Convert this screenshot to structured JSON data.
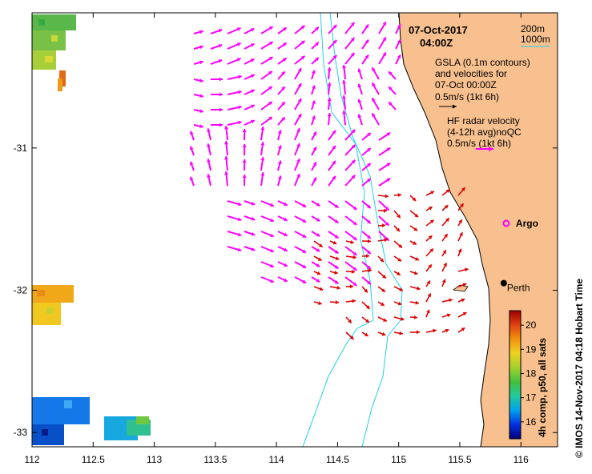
{
  "chart_data": {
    "type": "map",
    "title_date": "07-Oct-2017",
    "title_time": "04:00Z",
    "x_ticks": [
      112,
      112.5,
      113,
      113.5,
      114,
      114.5,
      115,
      115.5,
      116
    ],
    "y_ticks": [
      -31,
      -32,
      -33
    ],
    "xlim": [
      112,
      116.3
    ],
    "ylim": [
      -33.1,
      -30.05
    ],
    "depth_legend": [
      "200m",
      "1000m"
    ],
    "gsla_legend": [
      "GSLA (0.1m contours)",
      "and velocities for",
      "07-Oct 00:00Z",
      "0.5m/s (1kt 6h)"
    ],
    "hf_legend": [
      "HF radar velocity",
      "(4-12h avg)noQC",
      "0.5m/s (1kt 6h)"
    ],
    "markers": [
      {
        "label": "Argo",
        "lon": 115.88,
        "lat": -31.53
      },
      {
        "label": "Perth",
        "lon": 115.86,
        "lat": -31.95
      }
    ],
    "colorbar": {
      "label": "4h comp, p50, all sats",
      "ticks": [
        16,
        17,
        18,
        19,
        20
      ],
      "range": [
        15.3,
        20.6
      ],
      "stops": [
        "#00007a",
        "#0030e0",
        "#00a0f0",
        "#20c8a0",
        "#40c040",
        "#a0d030",
        "#f0d020",
        "#f09010",
        "#e04010",
        "#a00000"
      ]
    },
    "side_caption": "©  IMOS 14-Nov-2017 04:18 Hobart Time",
    "colors": {
      "coast_fill": "#f7c08e",
      "isobath": "#20d0e8",
      "radar_vector": "#ff00ff",
      "gsla_vector": "#dd0000"
    }
  }
}
